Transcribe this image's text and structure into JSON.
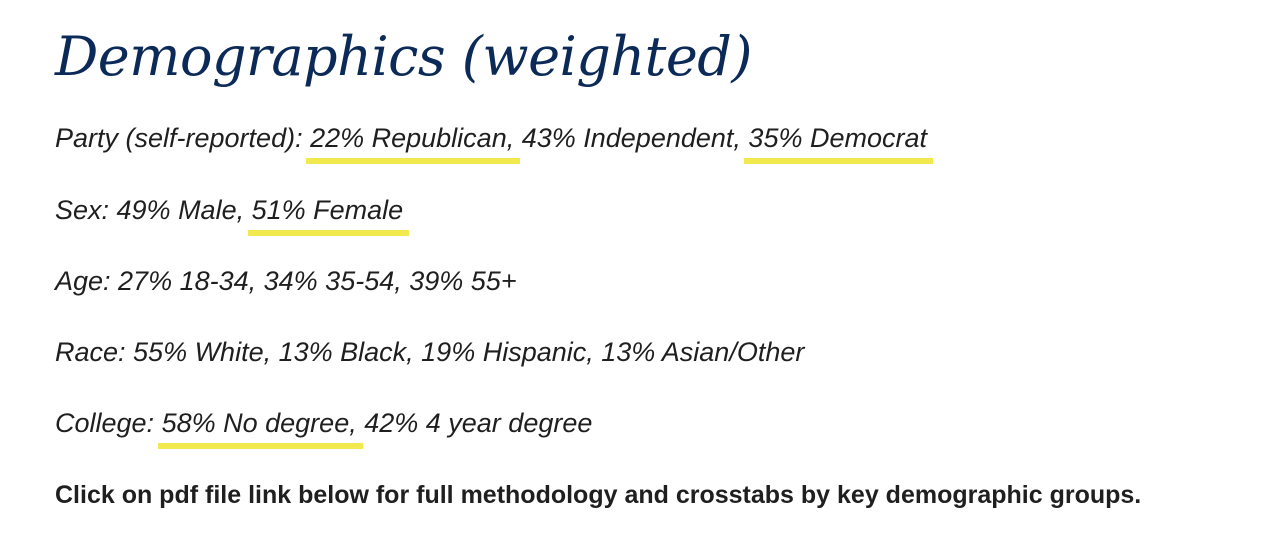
{
  "title": "Demographics (weighted)",
  "party": {
    "prefix": "Party (self-reported): ",
    "republican": "22% Republican,",
    "independent": " 43% Independent, ",
    "democrat": "35% Democrat"
  },
  "sex": {
    "prefix": "Sex: 49% Male, ",
    "female": "51% Female"
  },
  "age": {
    "text": "Age: 27% 18-34, 34% 35-54, 39% 55+"
  },
  "race": {
    "text": "Race: 55% White, 13% Black, 19% Hispanic, 13% Asian/Other"
  },
  "college": {
    "prefix": "College: ",
    "no_degree": "58% No degree,",
    "rest": " 42% 4 year degree"
  },
  "note": "Click on pdf file link below for full methodology and crosstabs by key demographic groups.",
  "colors": {
    "title": "#0c2a57",
    "highlight": "#f2e94e",
    "text": "#1f1f1f"
  }
}
